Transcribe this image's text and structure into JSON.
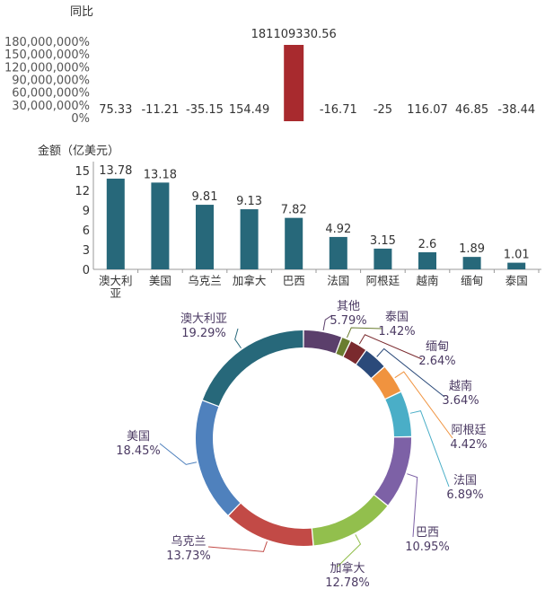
{
  "yoy_chart": {
    "ylabel": "同比",
    "y_ticks": [
      "180,000,000%",
      "150,000,000%",
      "120,000,000%",
      "90,000,000%",
      "60,000,000%",
      "30,000,000%",
      "0%"
    ]
  },
  "amount_chart": {
    "ylabel": "金额（亿美元）",
    "y_ticks": [
      "15",
      "12",
      "9",
      "6",
      "3",
      "0"
    ]
  },
  "chart_data": [
    {
      "type": "bar",
      "title": "",
      "ylabel": "同比",
      "unit": "%",
      "ylim": [
        0,
        180000000
      ],
      "categories": [
        "澳大利亚",
        "美国",
        "乌克兰",
        "加拿大",
        "巴西",
        "法国",
        "阿根廷",
        "越南",
        "缅甸",
        "泰国"
      ],
      "values": [
        75.33,
        -11.21,
        -35.15,
        154.49,
        181109330.56,
        -16.71,
        -25,
        116.07,
        46.85,
        -38.44
      ],
      "labels": [
        "75.33",
        "-11.21",
        "-35.15",
        "154.49",
        "181109330.56",
        "-16.71",
        "-25",
        "116.07",
        "46.85",
        "-38.44"
      ],
      "color": "#a82a2e"
    },
    {
      "type": "bar",
      "title": "",
      "ylabel": "金额（亿美元）",
      "ylim": [
        0,
        15
      ],
      "categories": [
        "澳大利亚",
        "美国",
        "乌克兰",
        "加拿大",
        "巴西",
        "法国",
        "阿根廷",
        "越南",
        "缅甸",
        "泰国"
      ],
      "values": [
        13.78,
        13.18,
        9.81,
        9.13,
        7.82,
        4.92,
        3.15,
        2.6,
        1.89,
        1.01
      ],
      "labels": [
        "13.78",
        "13.18",
        "9.81",
        "9.13",
        "7.82",
        "4.92",
        "3.15",
        "2.6",
        "1.89",
        "1.01"
      ],
      "color": "#27687a"
    },
    {
      "type": "pie",
      "title": "",
      "donut": true,
      "slices": [
        {
          "label": "其他",
          "value": 5.79,
          "display": "5.79%",
          "color": "#5b3f6b"
        },
        {
          "label": "泰国",
          "value": 1.42,
          "display": "1.42%",
          "color": "#6a7d2f"
        },
        {
          "label": "缅甸",
          "value": 2.64,
          "display": "2.64%",
          "color": "#7a2a2e"
        },
        {
          "label": "越南",
          "value": 3.64,
          "display": "3.64%",
          "color": "#2b4a7a"
        },
        {
          "label": "阿根廷",
          "value": 4.42,
          "display": "4.42%",
          "color": "#f0933f"
        },
        {
          "label": "法国",
          "value": 6.89,
          "display": "6.89%",
          "color": "#4aaec7"
        },
        {
          "label": "巴西",
          "value": 10.95,
          "display": "10.95%",
          "color": "#7d61a6"
        },
        {
          "label": "加拿大",
          "value": 12.78,
          "display": "12.78%",
          "color": "#92bf4d"
        },
        {
          "label": "乌克兰",
          "value": 13.73,
          "display": "13.73%",
          "color": "#c24a46"
        },
        {
          "label": "美国",
          "value": 18.45,
          "display": "18.45%",
          "color": "#4f81bd"
        },
        {
          "label": "澳大利亚",
          "value": 19.29,
          "display": "19.29%",
          "color": "#27687a"
        }
      ]
    }
  ]
}
